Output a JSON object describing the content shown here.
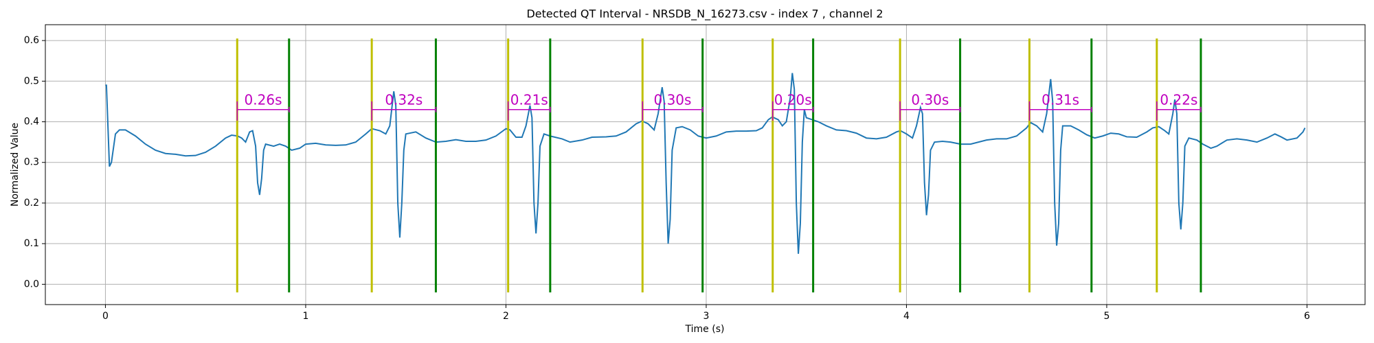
{
  "chart_data": {
    "type": "line",
    "title": "Detected QT Interval - NRSDB_N_16273.csv - index 7 , channel 2",
    "xlabel": "Time (s)",
    "ylabel": "Normalized Value",
    "xlim": [
      -0.3,
      6.29
    ],
    "ylim": [
      -0.05,
      0.639
    ],
    "xticks": [
      0,
      1,
      2,
      3,
      4,
      5,
      6
    ],
    "yticks": [
      {
        "value": 0,
        "label": "0.0"
      },
      0.1,
      0.2,
      0.3,
      0.4,
      0.5,
      0.6
    ],
    "grid": true,
    "x": [
      0.0,
      0.005,
      0.02,
      0.03,
      0.05,
      0.07,
      0.1,
      0.15,
      0.2,
      0.25,
      0.3,
      0.35,
      0.4,
      0.45,
      0.5,
      0.55,
      0.6,
      0.63,
      0.66,
      0.68,
      0.7,
      0.72,
      0.735,
      0.75,
      0.76,
      0.77,
      0.78,
      0.79,
      0.8,
      0.84,
      0.87,
      0.9,
      0.93,
      0.97,
      1.0,
      1.05,
      1.1,
      1.15,
      1.2,
      1.25,
      1.3,
      1.33,
      1.37,
      1.4,
      1.42,
      1.44,
      1.45,
      1.46,
      1.47,
      1.48,
      1.49,
      1.5,
      1.55,
      1.6,
      1.65,
      1.7,
      1.75,
      1.8,
      1.85,
      1.9,
      1.95,
      2.0,
      2.02,
      2.05,
      2.08,
      2.1,
      2.12,
      2.13,
      2.14,
      2.15,
      2.16,
      2.17,
      2.19,
      2.22,
      2.28,
      2.32,
      2.38,
      2.43,
      2.5,
      2.55,
      2.6,
      2.65,
      2.68,
      2.71,
      2.74,
      2.76,
      2.78,
      2.79,
      2.8,
      2.81,
      2.82,
      2.83,
      2.85,
      2.88,
      2.92,
      2.96,
      3.0,
      3.05,
      3.1,
      3.15,
      3.2,
      3.25,
      3.28,
      3.31,
      3.33,
      3.36,
      3.38,
      3.4,
      3.42,
      3.43,
      3.44,
      3.45,
      3.46,
      3.47,
      3.48,
      3.49,
      3.5,
      3.53,
      3.56,
      3.6,
      3.65,
      3.7,
      3.75,
      3.8,
      3.85,
      3.9,
      3.95,
      3.97,
      4.0,
      4.03,
      4.05,
      4.07,
      4.08,
      4.09,
      4.1,
      4.11,
      4.12,
      4.14,
      4.18,
      4.22,
      4.27,
      4.32,
      4.36,
      4.4,
      4.45,
      4.5,
      4.55,
      4.6,
      4.62,
      4.65,
      4.68,
      4.7,
      4.72,
      4.73,
      4.74,
      4.75,
      4.76,
      4.77,
      4.78,
      4.82,
      4.86,
      4.9,
      4.94,
      4.98,
      5.02,
      5.06,
      5.1,
      5.15,
      5.2,
      5.23,
      5.26,
      5.29,
      5.31,
      5.33,
      5.34,
      5.35,
      5.36,
      5.37,
      5.38,
      5.39,
      5.41,
      5.45,
      5.48,
      5.52,
      5.55,
      5.6,
      5.65,
      5.7,
      5.75,
      5.8,
      5.84,
      5.87,
      5.9,
      5.95,
      5.98,
      5.99
    ],
    "series": [
      {
        "color": "#1f77b4",
        "values": [
          0.49,
          0.49,
          0.29,
          0.3,
          0.37,
          0.38,
          0.38,
          0.365,
          0.345,
          0.33,
          0.322,
          0.32,
          0.316,
          0.317,
          0.325,
          0.34,
          0.36,
          0.367,
          0.365,
          0.36,
          0.35,
          0.375,
          0.378,
          0.34,
          0.25,
          0.22,
          0.26,
          0.33,
          0.345,
          0.34,
          0.345,
          0.34,
          0.33,
          0.335,
          0.345,
          0.347,
          0.343,
          0.342,
          0.343,
          0.35,
          0.37,
          0.383,
          0.378,
          0.37,
          0.39,
          0.475,
          0.44,
          0.2,
          0.115,
          0.2,
          0.33,
          0.37,
          0.375,
          0.36,
          0.35,
          0.352,
          0.356,
          0.352,
          0.352,
          0.355,
          0.365,
          0.383,
          0.38,
          0.362,
          0.362,
          0.39,
          0.44,
          0.41,
          0.2,
          0.125,
          0.2,
          0.34,
          0.37,
          0.365,
          0.358,
          0.35,
          0.355,
          0.362,
          0.363,
          0.365,
          0.375,
          0.395,
          0.402,
          0.395,
          0.38,
          0.42,
          0.485,
          0.45,
          0.25,
          0.1,
          0.16,
          0.33,
          0.385,
          0.388,
          0.38,
          0.365,
          0.36,
          0.365,
          0.375,
          0.377,
          0.377,
          0.378,
          0.385,
          0.405,
          0.412,
          0.405,
          0.39,
          0.4,
          0.46,
          0.52,
          0.48,
          0.2,
          0.075,
          0.15,
          0.35,
          0.43,
          0.41,
          0.405,
          0.4,
          0.39,
          0.38,
          0.378,
          0.372,
          0.36,
          0.358,
          0.362,
          0.375,
          0.378,
          0.37,
          0.36,
          0.39,
          0.435,
          0.42,
          0.25,
          0.17,
          0.22,
          0.33,
          0.35,
          0.352,
          0.35,
          0.345,
          0.345,
          0.35,
          0.355,
          0.358,
          0.358,
          0.365,
          0.385,
          0.398,
          0.39,
          0.375,
          0.42,
          0.505,
          0.45,
          0.2,
          0.095,
          0.15,
          0.33,
          0.39,
          0.39,
          0.38,
          0.368,
          0.36,
          0.365,
          0.372,
          0.37,
          0.363,
          0.362,
          0.375,
          0.385,
          0.388,
          0.378,
          0.37,
          0.42,
          0.455,
          0.42,
          0.2,
          0.135,
          0.2,
          0.34,
          0.36,
          0.355,
          0.345,
          0.335,
          0.34,
          0.355,
          0.358,
          0.355,
          0.35,
          0.36,
          0.37,
          0.363,
          0.355,
          0.36,
          0.375,
          0.385
        ]
      }
    ],
    "q_onsets": {
      "color": "#bfbf00",
      "values": [
        0.658,
        1.33,
        2.011,
        2.682,
        3.332,
        3.968,
        4.614,
        5.25
      ]
    },
    "t_ends": {
      "color": "#008000",
      "values": [
        0.917,
        1.65,
        2.221,
        2.982,
        3.534,
        4.268,
        4.924,
        5.47
      ]
    },
    "marker_ylim": [
      -0.02,
      0.605
    ],
    "qt_intervals": {
      "color": "#bf00bf",
      "bracket_y": 0.43,
      "values": [
        0.26,
        0.32,
        0.21,
        0.3,
        0.2,
        0.3,
        0.31,
        0.22
      ],
      "value_labels": [
        "0.26s",
        "0.32s",
        "0.21s",
        "0.30s",
        "0.20s",
        "0.30s",
        "0.31s",
        "0.22s"
      ]
    }
  }
}
